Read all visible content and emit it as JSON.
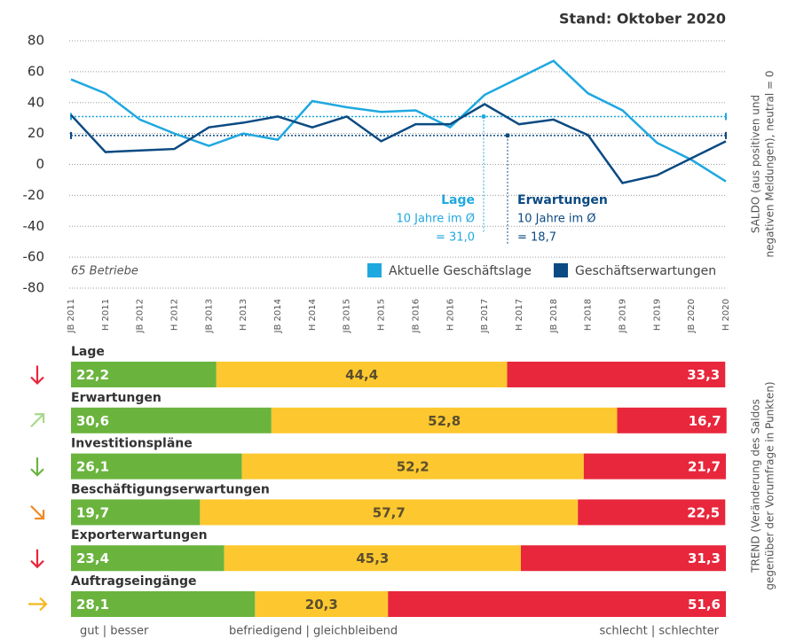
{
  "chart_data": [
    {
      "type": "line",
      "title": "Stand: Oktober 2020",
      "note": "65 Betriebe",
      "ylabel": [
        "SALDO (aus positiven und",
        "negativen Meldungen), neutral = 0"
      ],
      "categories": [
        "JB 2011",
        "H 2011",
        "JB 2012",
        "H 2012",
        "JB 2013",
        "H 2013",
        "JB 2014",
        "H 2014",
        "JB 2015",
        "H 2015",
        "JB 2016",
        "H 2016",
        "JB 2017",
        "H 2017",
        "JB 2018",
        "H 2018",
        "JB 2019",
        "H 2019",
        "JB 2020",
        "H 2020"
      ],
      "series": [
        {
          "name": "Aktuelle Geschäftslage",
          "color": "#1fa8e0",
          "values": [
            55,
            46,
            29,
            20,
            12,
            20,
            16,
            41,
            37,
            34,
            35,
            24,
            45,
            56,
            67,
            46,
            35,
            14,
            3,
            -11
          ]
        },
        {
          "name": "Geschäftserwartungen",
          "color": "#0b4a82",
          "values": [
            32,
            8,
            9,
            10,
            24,
            27,
            31,
            24,
            31,
            15,
            26,
            26,
            39,
            26,
            29,
            19,
            -12,
            -7,
            4,
            15
          ]
        }
      ],
      "averages": [
        {
          "name": "Lage",
          "label": "10 Jahre im Ø",
          "value": 31.0,
          "value_label": "= 31,0",
          "color": "#1fa8e0"
        },
        {
          "name": "Erwartungen",
          "label": "10 Jahre im Ø",
          "value": 18.7,
          "value_label": "= 18,7",
          "color": "#0b4a82"
        }
      ],
      "ylim": [
        -80,
        80
      ],
      "yticks": [
        -80,
        -60,
        -40,
        -20,
        0,
        20,
        40,
        60,
        80
      ],
      "grid": true
    },
    {
      "type": "stacked_bar",
      "axis_label": [
        "TREND (Veränderung des Saldos",
        "gegenüber der Vorumfrage in Punkten)"
      ],
      "legend": [
        "gut | besser",
        "befriedigend | gleichbleibend",
        "schlecht | schlechter"
      ],
      "colors": [
        "#6ab43e",
        "#fdc82f",
        "#e8273c"
      ],
      "xlim": [
        0,
        100
      ],
      "rows": [
        {
          "name": "Lage",
          "trend": "down",
          "trend_color": "#e8273c",
          "values": [
            22.2,
            44.4,
            33.3
          ],
          "value_labels": [
            "22,2",
            "44,4",
            "33,3"
          ]
        },
        {
          "name": "Erwartungen",
          "trend": "up-right",
          "trend_color": "#a8d88a",
          "values": [
            30.6,
            52.8,
            16.7
          ],
          "value_labels": [
            "30,6",
            "52,8",
            "16,7"
          ]
        },
        {
          "name": "Investitionspläne",
          "trend": "down",
          "trend_color": "#6ab43e",
          "values": [
            26.1,
            52.2,
            21.7
          ],
          "value_labels": [
            "26,1",
            "52,2",
            "21,7"
          ]
        },
        {
          "name": "Beschäftigungserwartungen",
          "trend": "down-right",
          "trend_color": "#f08a24",
          "values": [
            19.7,
            57.7,
            22.5
          ],
          "value_labels": [
            "19,7",
            "57,7",
            "22,5"
          ]
        },
        {
          "name": "Exporterwartungen",
          "trend": "down",
          "trend_color": "#e8273c",
          "values": [
            23.4,
            45.3,
            31.3
          ],
          "value_labels": [
            "23,4",
            "45,3",
            "31,3"
          ]
        },
        {
          "name": "Auftragseingänge",
          "trend": "right",
          "trend_color": "#f5b820",
          "values": [
            28.1,
            20.3,
            51.6
          ],
          "value_labels": [
            "28,1",
            "20,3",
            "51,6"
          ]
        }
      ]
    }
  ]
}
